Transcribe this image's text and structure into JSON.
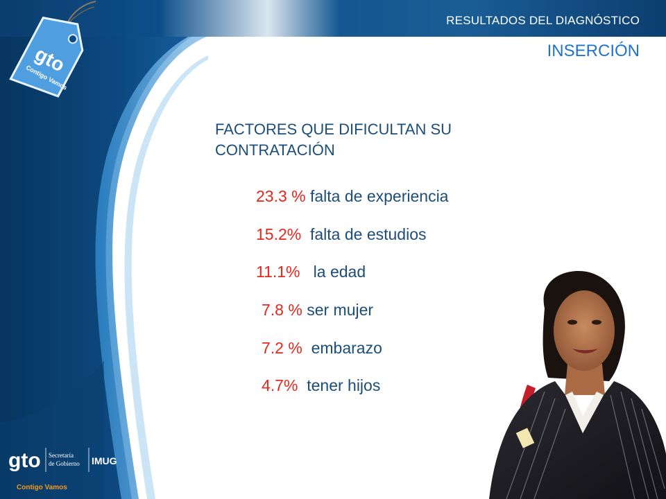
{
  "header": {
    "title": "RESULTADOS DEL DIAGNÓSTICO"
  },
  "section": {
    "title": "INSERCIÓN"
  },
  "content": {
    "heading_line1": "FACTORES QUE DIFICULTAN SU",
    "heading_line2": "CONTRATACIÓN",
    "factors": [
      {
        "percent": "23.3 %",
        "label": " falta de experiencia"
      },
      {
        "percent": "15.2%",
        "label": "  falta de estudios"
      },
      {
        "percent": "11.1%",
        "label": "   la edad"
      },
      {
        "percent": "7.8 %",
        "label": " ser mujer"
      },
      {
        "percent": "7.2 %",
        "label": "  embarazo"
      },
      {
        "percent": "4.7%",
        "label": "  tener hijos"
      }
    ]
  },
  "branding": {
    "tag_logo": "gto",
    "tag_slogan": "Contigo Vamos",
    "footer_logo": "gto",
    "footer_dept_line1": "Secretaría",
    "footer_dept_line2": "de Gobierno",
    "footer_imug": "IMUG",
    "footer_slogan": "Contigo Vamos"
  },
  "colors": {
    "header_blue": "#0d4f8a",
    "accent_blue": "#1f74c8",
    "text_blue": "#1c4d79",
    "percent_red": "#e8261c"
  }
}
